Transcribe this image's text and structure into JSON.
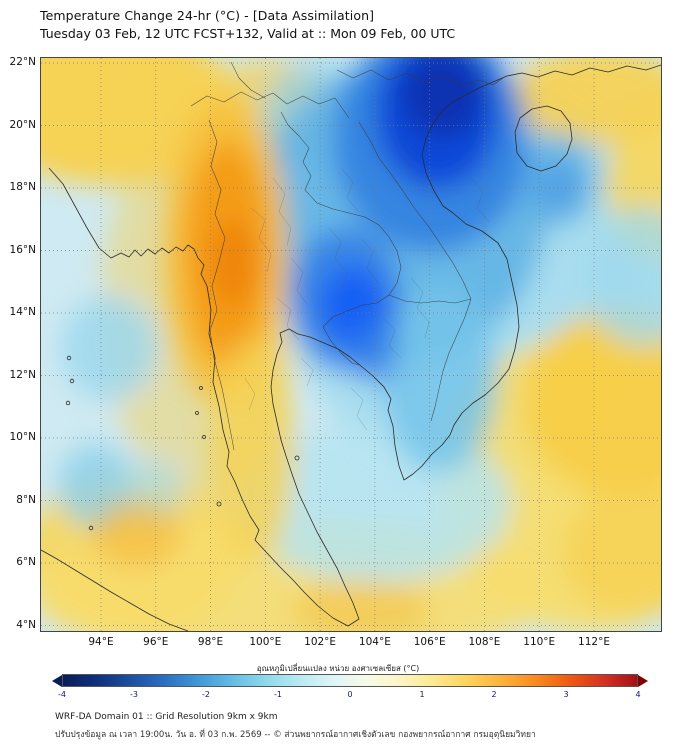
{
  "header": {
    "title": "Temperature Change 24-hr (°C) - [Data Assimilation]",
    "subtitle": "Tuesday 03 Feb, 12 UTC FCST+132, Valid at :: Mon 09 Feb, 00 UTC"
  },
  "map": {
    "lat_labels": [
      "22°N",
      "20°N",
      "18°N",
      "16°N",
      "14°N",
      "12°N",
      "10°N",
      "8°N",
      "6°N",
      "4°N"
    ],
    "lon_labels": [
      "94°E",
      "96°E",
      "98°E",
      "100°E",
      "102°E",
      "104°E",
      "106°E",
      "108°E",
      "110°E",
      "112°E"
    ],
    "field_colors": {
      "base": "#cfeaf2",
      "cold_core": "#0a2fb0",
      "cold_mid": "#155ef5",
      "warm_core": "#ee8306",
      "warm_mid": "#f6d255"
    }
  },
  "colorbar": {
    "label_thai": "อุณหภูมิเปลี่ยนแปลง หน่วย องศาเซลเซียส (°C)",
    "tick_labels": [
      "-4",
      "-3",
      "-2",
      "-1",
      "0",
      "1",
      "2",
      "3",
      "4"
    ],
    "gradient": [
      "#081d58",
      "#10307e",
      "#1d4fa0",
      "#2b6fc2",
      "#3f97d8",
      "#63bce4",
      "#8fd8ec",
      "#b8eaf2",
      "#dff5f8",
      "#f6fbe8",
      "#fdf4c4",
      "#fde88e",
      "#fdd35c",
      "#fdb23c",
      "#f98a20",
      "#ef5a11",
      "#d63222",
      "#a50f15"
    ],
    "left_arrow_color": "#081d58",
    "right_arrow_color": "#7f0000"
  },
  "footer": {
    "line1": "WRF-DA Domain 01 :: Grid Resolution 9km x 9km",
    "line2": "ปรับปรุงข้อมูล ณ เวลา 19:00น. วัน อ. ที่ 03 ก.พ. 2569 -- © ส่วนพยากรณ์อากาศเชิงตัวเลข กองพยากรณ์อากาศ กรมอุตุนิยมวิทยา"
  }
}
